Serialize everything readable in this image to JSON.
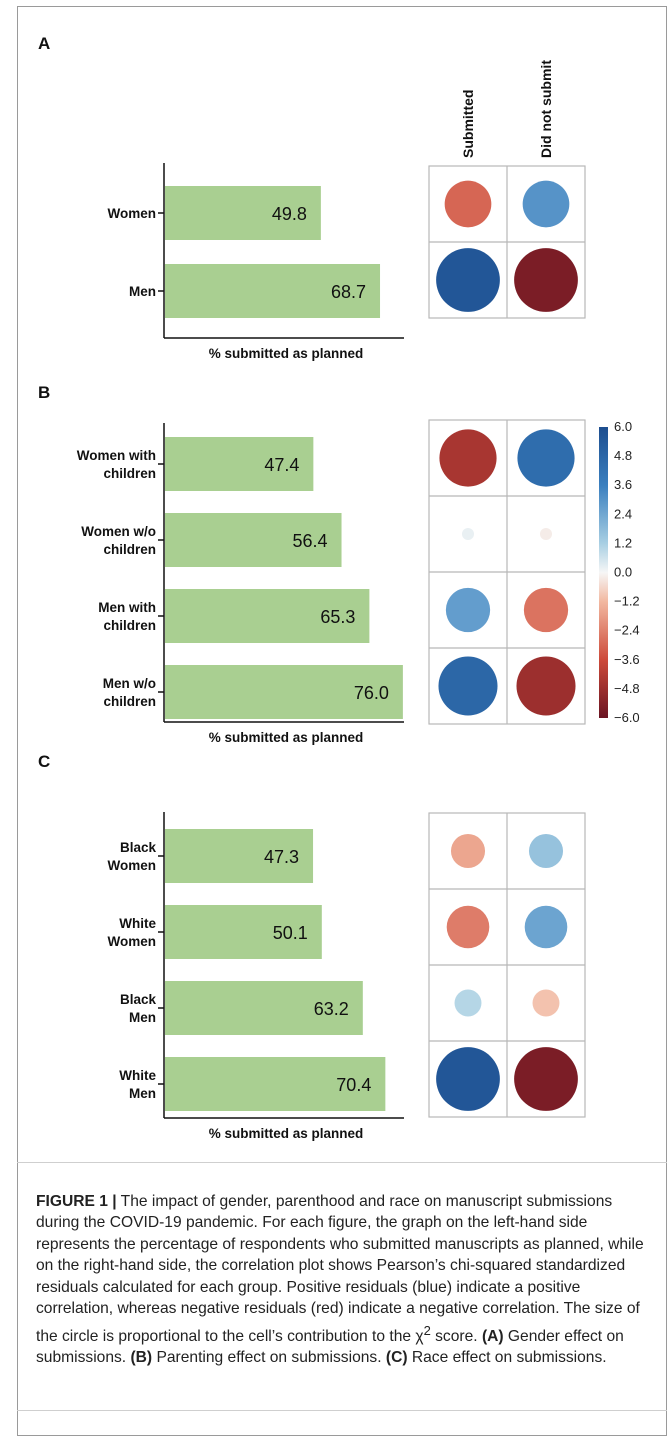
{
  "panels": [
    {
      "letter": "A",
      "xlabel": "% submitted as planned",
      "show_col_headers": true,
      "categories": [
        [
          "Women"
        ],
        [
          "Men"
        ]
      ],
      "values": [
        49.8,
        68.7
      ],
      "residuals": [
        [
          -3.0,
          3.0
        ],
        [
          5.6,
          -5.6
        ]
      ]
    },
    {
      "letter": "B",
      "xlabel": "% submitted as planned",
      "show_col_headers": false,
      "categories": [
        [
          "Women with",
          "children"
        ],
        [
          "Women w/o",
          "children"
        ],
        [
          "Men with",
          "children"
        ],
        [
          "Men w/o",
          "children"
        ]
      ],
      "values": [
        47.4,
        56.4,
        65.3,
        76.0
      ],
      "residuals": [
        [
          -4.5,
          4.5
        ],
        [
          0.2,
          -0.2
        ],
        [
          2.7,
          -2.7
        ],
        [
          4.8,
          -4.8
        ]
      ]
    },
    {
      "letter": "C",
      "xlabel": "% submitted as planned",
      "show_col_headers": false,
      "categories": [
        [
          "Black",
          "Women"
        ],
        [
          "White",
          "Women"
        ],
        [
          "Black",
          "Men"
        ],
        [
          "White",
          "Men"
        ]
      ],
      "values": [
        47.3,
        50.1,
        63.2,
        70.4
      ],
      "residuals": [
        [
          -1.6,
          1.6
        ],
        [
          -2.5,
          2.5
        ],
        [
          1.0,
          -1.0
        ],
        [
          5.6,
          -5.6
        ]
      ]
    }
  ],
  "column_headers": [
    "Submitted",
    "Did not submit"
  ],
  "colorbar": {
    "ticks": [
      "6.0",
      "4.8",
      "3.6",
      "2.4",
      "1.2",
      "0.0",
      "−1.2",
      "−2.4",
      "−3.6",
      "−4.8",
      "−6.0"
    ],
    "min": -6.0,
    "max": 6.0
  },
  "colors": {
    "bar": "#a9cf91",
    "positive": "#1d4e8f",
    "negative": "#6a1422",
    "grid": "#b8b8b8"
  },
  "chart_data": [
    {
      "type": "bar",
      "categories": [
        "Women",
        "Men"
      ],
      "values": [
        49.8,
        68.7
      ],
      "xlabel": "% submitted as planned"
    },
    {
      "type": "heatmap",
      "rows": [
        "Women",
        "Men"
      ],
      "columns": [
        "Submitted",
        "Did not submit"
      ],
      "values": [
        [
          -3.0,
          3.0
        ],
        [
          5.6,
          -5.6
        ]
      ]
    },
    {
      "type": "bar",
      "categories": [
        "Women with children",
        "Women w/o children",
        "Men with children",
        "Men w/o children"
      ],
      "values": [
        47.4,
        56.4,
        65.3,
        76.0
      ],
      "xlabel": "% submitted as planned"
    },
    {
      "type": "heatmap",
      "rows": [
        "Women with children",
        "Women w/o children",
        "Men with children",
        "Men w/o children"
      ],
      "columns": [
        "Submitted",
        "Did not submit"
      ],
      "values": [
        [
          -4.5,
          4.5
        ],
        [
          0.2,
          -0.2
        ],
        [
          2.7,
          -2.7
        ],
        [
          4.8,
          -4.8
        ]
      ]
    },
    {
      "type": "bar",
      "categories": [
        "Black Women",
        "White Women",
        "Black Men",
        "White Men"
      ],
      "values": [
        47.3,
        50.1,
        63.2,
        70.4
      ],
      "xlabel": "% submitted as planned"
    },
    {
      "type": "heatmap",
      "rows": [
        "Black Women",
        "White Women",
        "Black Men",
        "White Men"
      ],
      "columns": [
        "Submitted",
        "Did not submit"
      ],
      "values": [
        [
          -1.6,
          1.6
        ],
        [
          -2.5,
          2.5
        ],
        [
          1.0,
          -1.0
        ],
        [
          5.6,
          -5.6
        ]
      ]
    }
  ],
  "caption": {
    "label": "FIGURE 1 |",
    "text1": " The impact of gender, parenthood and race on manuscript submissions during the COVID-19 pandemic. For each figure, the graph on the left-hand side represents the percentage of respondents who submitted manuscripts as planned, while on the right-hand side, the correlation plot shows Pearson’s chi-squared standardized residuals calculated for each group. Positive residuals (blue) indicate a positive correlation, whereas negative residuals (red) indicate a negative correlation. The size of the circle is proportional to the cell’s contribution to the χ",
    "sup": "2",
    "text2": " score. ",
    "a_label": "(A)",
    "a_text": " Gender effect on submissions. ",
    "b_label": "(B)",
    "b_text": " Parenting effect on submissions. ",
    "c_label": "(C)",
    "c_text": " Race effect on submissions."
  }
}
